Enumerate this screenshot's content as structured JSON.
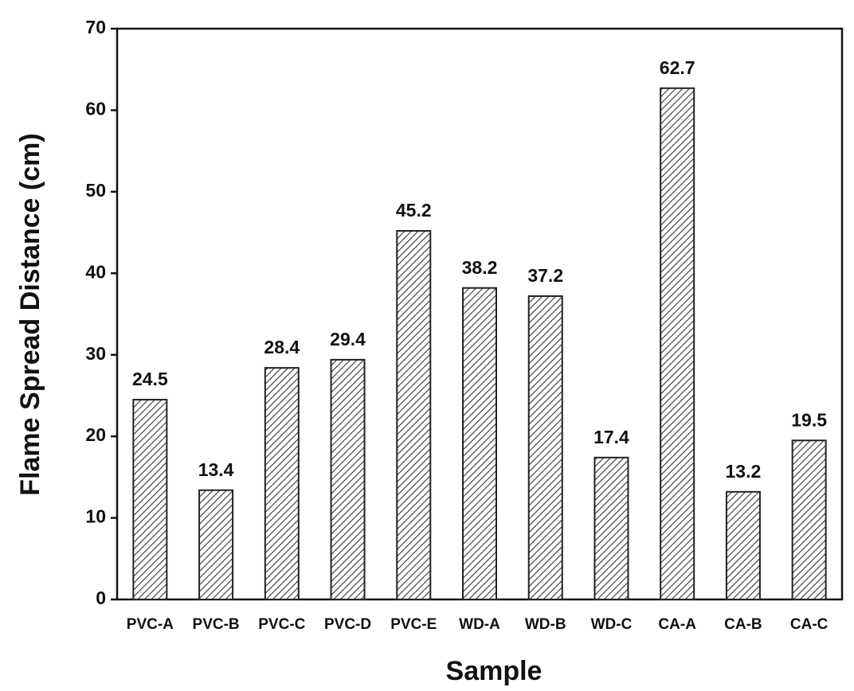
{
  "chart_data": {
    "type": "bar",
    "x_label": "Sample",
    "y_label": "Flame Spread Distance (cm)",
    "categories": [
      "PVC-A",
      "PVC-B",
      "PVC-C",
      "PVC-D",
      "PVC-E",
      "WD-A",
      "WD-B",
      "WD-C",
      "CA-A",
      "CA-B",
      "CA-C"
    ],
    "values": [
      24.5,
      13.4,
      28.4,
      29.4,
      45.2,
      38.2,
      37.2,
      17.4,
      62.7,
      13.2,
      19.5
    ],
    "color": "#222222",
    "ylim": [
      0,
      70
    ],
    "yticks": [
      0,
      10,
      20,
      30,
      40,
      50,
      60,
      70
    ],
    "grid": false
  }
}
